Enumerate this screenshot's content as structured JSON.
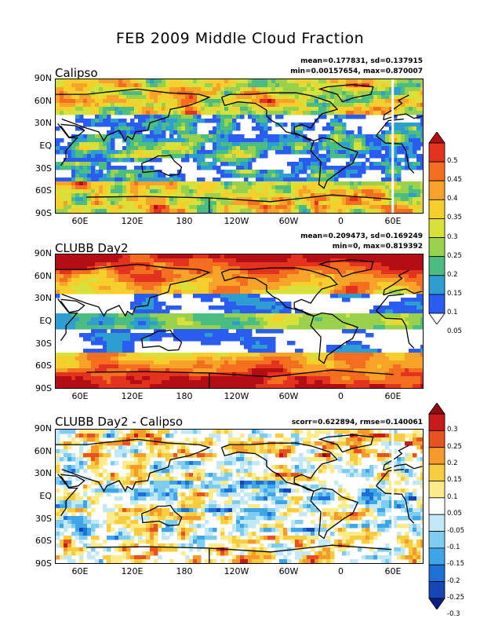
{
  "title": "FEB 2009 Middle Cloud Fraction",
  "panels": [
    {
      "name": "Calipso",
      "stats_line1": "mean=0.177831, sd=0.137915",
      "stats_line2": "min=0.00157654, max=0.870007"
    },
    {
      "name": "CLUBB Day2",
      "stats_line1": "mean=0.209473, sd=0.169249",
      "stats_line2": "min=0, max=0.819392"
    },
    {
      "name": "CLUBB Day2 - Calipso",
      "stats_line1": "scorr=0.622894, rmse=0.140061",
      "stats_line2": ""
    }
  ],
  "lat_labels": [
    "90N",
    "60N",
    "30N",
    "EQ",
    "30S",
    "60S",
    "90S"
  ],
  "lon_labels": [
    "60E",
    "120E",
    "180",
    "120W",
    "60W",
    "0",
    "60E"
  ],
  "colorbar_top": {
    "labels": [
      "0.5",
      "0.45",
      "0.4",
      "0.35",
      "0.3",
      "0.25",
      "0.2",
      "0.15",
      "0.1",
      "0.05"
    ],
    "colors": [
      "#b50d14",
      "#e3321d",
      "#f36e1e",
      "#f7a229",
      "#f6cf2d",
      "#d8e13a",
      "#9ad14c",
      "#4bbd83",
      "#2e9ed0",
      "#2a5cf0",
      "#ffffff"
    ]
  },
  "colorbar_bottom": {
    "labels": [
      "0.3",
      "0.25",
      "0.2",
      "0.15",
      "0.1",
      "0.05",
      "-0.05",
      "-0.1",
      "-0.15",
      "-0.2",
      "-0.25",
      "-0.3"
    ],
    "colors": [
      "#8e0b12",
      "#c61b1b",
      "#e8521e",
      "#f59a2b",
      "#f7cc3e",
      "#fbeb8a",
      "#ffffff",
      "#c2e8f5",
      "#7ecdf0",
      "#3ea6e6",
      "#1c70d8",
      "#1646b5",
      "#0b1f80"
    ]
  }
}
